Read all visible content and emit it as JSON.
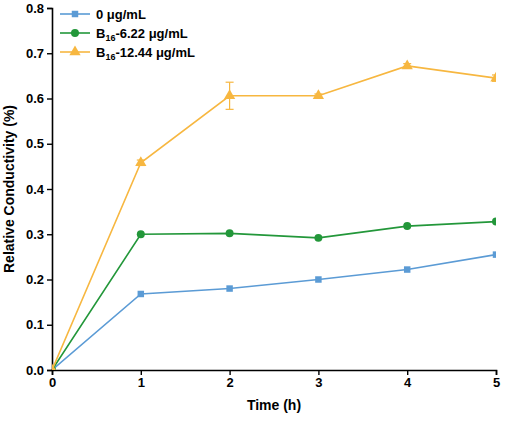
{
  "chart_data": {
    "type": "line",
    "x_label": "Time (h)",
    "y_label": "Relative Conductivity (%)",
    "x": [
      0,
      1,
      2,
      3,
      4,
      5
    ],
    "xlim": [
      0,
      5
    ],
    "xticks": [
      0,
      1,
      2,
      3,
      4,
      5
    ],
    "ylim": [
      0,
      0.8
    ],
    "yticks": [
      {
        "value": 0,
        "label": "0.0"
      },
      0.1,
      0.2,
      0.3,
      0.4,
      0.5,
      0.6,
      0.7,
      0.8
    ],
    "legend": "top-left",
    "grid": false,
    "series": [
      {
        "name": "0 μg/mL",
        "color": "#5b9bd5",
        "marker": "square",
        "line_style": "solid",
        "values": [
          0,
          0.168,
          0.18,
          0.2,
          0.222,
          0.255
        ]
      },
      {
        "name": "B16-6.22 μg/mL",
        "color": "#23973a",
        "marker": "circle",
        "line_style": "solid",
        "values": [
          0,
          0.3,
          0.302,
          0.292,
          0.318,
          0.328
        ]
      },
      {
        "name": "B16-12.44 μg/mL",
        "color": "#f7b740",
        "marker": "triangle",
        "line_style": "solid",
        "values": [
          0,
          0.458,
          0.606,
          0.606,
          0.672,
          0.645
        ],
        "errors": [
          0,
          0.006,
          0.03,
          0.004,
          0.005,
          0.007
        ]
      }
    ]
  }
}
